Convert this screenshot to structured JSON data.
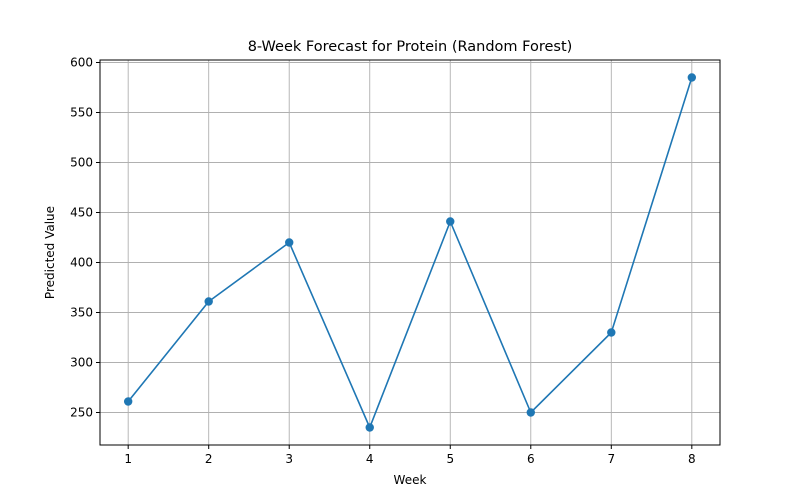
{
  "chart_data": {
    "type": "line",
    "title": "8-Week Forecast for Protein (Random Forest)",
    "xlabel": "Week",
    "ylabel": "Predicted Value",
    "x": [
      1,
      2,
      3,
      4,
      5,
      6,
      7,
      8
    ],
    "series": [
      {
        "values": [
          261,
          361,
          420,
          235,
          441,
          250,
          330,
          585
        ]
      }
    ],
    "xticks": [
      "1",
      "2",
      "3",
      "4",
      "5",
      "6",
      "7",
      "8"
    ],
    "yticks": [
      250,
      300,
      350,
      400,
      450,
      500,
      550,
      600
    ],
    "xlim": [
      0.65,
      8.35
    ],
    "ylim": [
      217.5,
      602.5
    ],
    "grid": true,
    "marker": "circle",
    "colors": {
      "line": "#1f77b4",
      "grid": "#b0b0b0",
      "axis": "#000000"
    }
  }
}
